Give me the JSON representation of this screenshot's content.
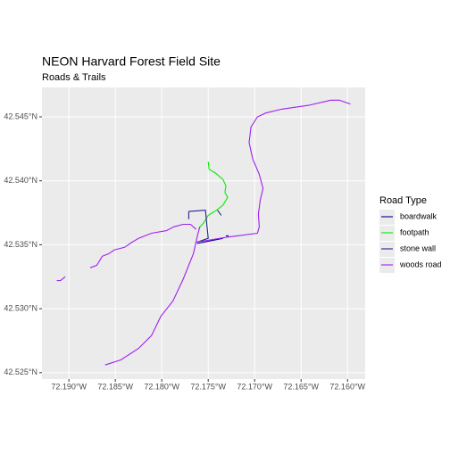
{
  "chart_data": {
    "type": "line",
    "title": "NEON Harvard Forest Field Site",
    "subtitle": "Roads & Trails",
    "legend_title": "Road Type",
    "legend_position": "right",
    "grid": true,
    "xlim": [
      -72.1929,
      -72.1581
    ],
    "ylim": [
      42.5245,
      42.5473
    ],
    "xticks": [
      {
        "value": -72.19,
        "label": "72.190°W"
      },
      {
        "value": -72.185,
        "label": "72.185°W"
      },
      {
        "value": -72.18,
        "label": "72.180°W"
      },
      {
        "value": -72.175,
        "label": "72.175°W"
      },
      {
        "value": -72.17,
        "label": "72.170°W"
      },
      {
        "value": -72.165,
        "label": "72.165°W"
      },
      {
        "value": -72.16,
        "label": "72.160°W"
      }
    ],
    "yticks": [
      {
        "value": 42.525,
        "label": "42.525°N"
      },
      {
        "value": 42.53,
        "label": "42.530°N"
      },
      {
        "value": 42.535,
        "label": "42.535°N"
      },
      {
        "value": 42.54,
        "label": "42.540°N"
      },
      {
        "value": 42.545,
        "label": "42.545°N"
      }
    ],
    "series": [
      {
        "name": "boardwalk",
        "color": "#00008b",
        "x": [
          -72.1762,
          -72.1734,
          null,
          -72.1731,
          -72.1728
        ],
        "values": [
          42.5351,
          42.5355,
          null,
          42.5357,
          42.5357
        ]
      },
      {
        "name": "footpath",
        "color": "#00ee00",
        "x": [
          -72.175,
          -72.1749,
          -72.1742,
          -72.1734,
          -72.1731,
          -72.1732,
          -72.1729,
          -72.1734,
          -72.1741,
          -72.175,
          -72.1755,
          -72.176
        ],
        "values": [
          42.5415,
          42.5409,
          42.5406,
          42.5401,
          42.5396,
          42.5391,
          42.5387,
          42.5381,
          42.5377,
          42.5373,
          42.5367,
          42.5363
        ]
      },
      {
        "name": "stone wall",
        "color": "#27208f",
        "x": [
          -72.1771,
          -72.1753,
          -72.175,
          -72.1762,
          null,
          -72.1771,
          -72.1771,
          null,
          -72.174,
          -72.1736
        ],
        "values": [
          42.5376,
          42.5377,
          42.5355,
          42.5352,
          null,
          42.5376,
          42.537,
          null,
          42.5377,
          42.5373
        ]
      },
      {
        "name": "woods road",
        "color": "#a020f0",
        "x": [
          -72.1861,
          -72.1844,
          -72.1825,
          -72.1811,
          -72.1801,
          -72.1788,
          -72.1777,
          -72.1766,
          -72.1761,
          -72.1759,
          null,
          -72.1763,
          -72.1729,
          -72.1697,
          -72.1695,
          -72.1696,
          -72.1694,
          -72.1691,
          -72.1695,
          -72.1702,
          -72.1706,
          -72.1704,
          -72.1697,
          -72.1688,
          -72.1671,
          -72.1642,
          -72.1618,
          -72.1609,
          -72.1597,
          null,
          -72.1877,
          -72.187,
          -72.1864,
          -72.1857,
          -72.1851,
          -72.184,
          -72.1832,
          -72.1825,
          -72.1811,
          -72.1795,
          -72.1787,
          -72.1777,
          -72.1769,
          -72.1763,
          null,
          -72.1913,
          -72.1909,
          -72.1904
        ],
        "values": [
          42.5256,
          42.526,
          42.5269,
          42.5279,
          42.5294,
          42.5306,
          42.5323,
          42.5343,
          42.5359,
          42.5364,
          null,
          42.5352,
          42.5356,
          42.5359,
          42.5364,
          42.5374,
          42.5385,
          42.5394,
          42.5405,
          42.5417,
          42.543,
          42.5442,
          42.545,
          42.5453,
          42.5456,
          42.5459,
          42.5463,
          42.5463,
          42.546,
          null,
          42.5332,
          42.5334,
          42.5341,
          42.5343,
          42.5346,
          42.5348,
          42.5352,
          42.5355,
          42.5359,
          42.5361,
          42.5364,
          42.5366,
          42.5366,
          42.5362,
          null,
          42.5322,
          42.5322,
          42.5325
        ]
      }
    ]
  }
}
